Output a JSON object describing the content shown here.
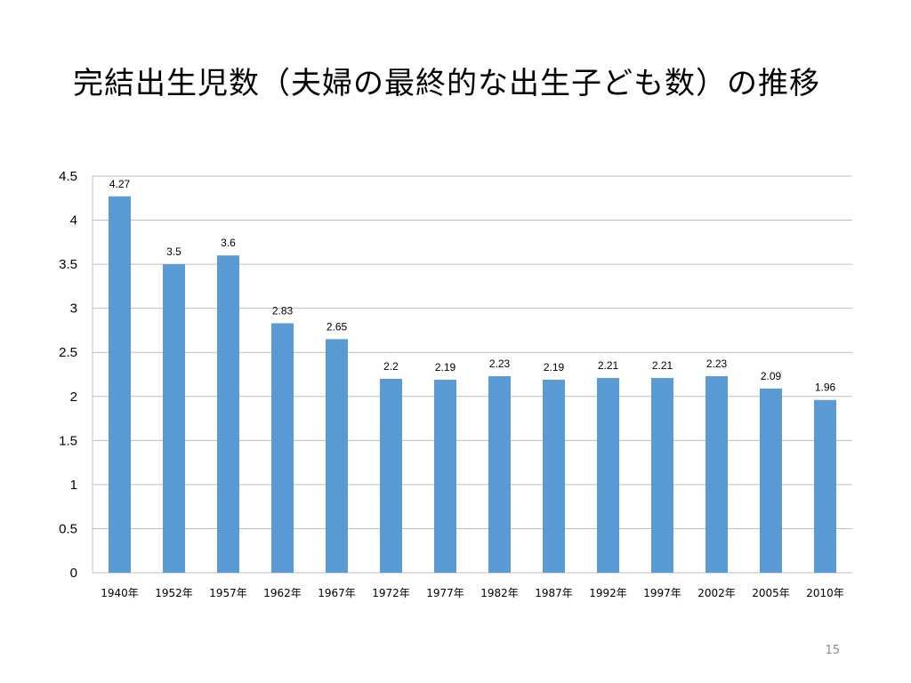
{
  "slide": {
    "title": "完結出生児数（夫婦の最終的な出生子ども数）の推移",
    "page_number": "15"
  },
  "colors": {
    "bar": "#5b9bd5",
    "grid": "#bfbfbf",
    "axis_text": "#000000"
  },
  "chart_data": {
    "type": "bar",
    "title": "",
    "xlabel": "",
    "ylabel": "",
    "categories": [
      "1940年",
      "1952年",
      "1957年",
      "1962年",
      "1967年",
      "1972年",
      "1977年",
      "1982年",
      "1987年",
      "1992年",
      "1997年",
      "2002年",
      "2005年",
      "2010年"
    ],
    "values": [
      4.27,
      3.5,
      3.6,
      2.83,
      2.65,
      2.2,
      2.19,
      2.23,
      2.19,
      2.21,
      2.21,
      2.23,
      2.09,
      1.96
    ],
    "data_labels": [
      "4.27",
      "3.5",
      "3.6",
      "2.83",
      "2.65",
      "2.2",
      "2.19",
      "2.23",
      "2.19",
      "2.21",
      "2.21",
      "2.23",
      "2.09",
      "1.96"
    ],
    "y_ticks": [
      "0",
      "0.5",
      "1",
      "1.5",
      "2",
      "2.5",
      "3",
      "3.5",
      "4",
      "4.5"
    ],
    "ylim": [
      0,
      4.5
    ],
    "grid": true,
    "legend": "none"
  }
}
